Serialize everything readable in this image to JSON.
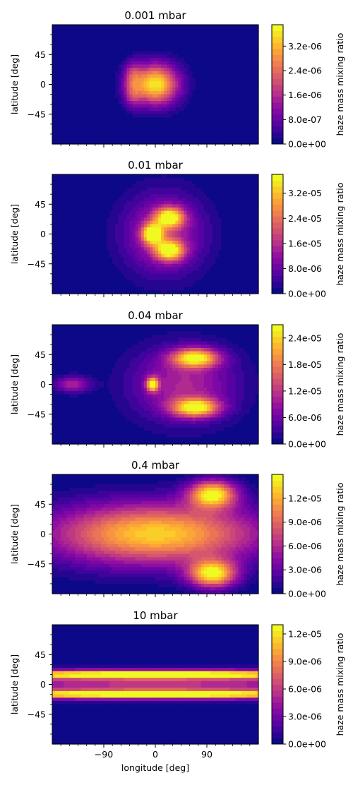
{
  "figure": {
    "xlabel": "longitude [deg]",
    "ylabel": "latitude [deg]",
    "colorbar_label": "haze mass mixing ratio"
  },
  "chart_data": [
    {
      "type": "heatmap",
      "title": "0.001 mbar",
      "xlabel": "",
      "ylabel": "latitude [deg]",
      "colorbar_label": "haze mass mixing ratio",
      "colormap": "plasma",
      "xlim": [
        -180,
        180
      ],
      "ylim": [
        -90,
        90
      ],
      "yticks": [
        {
          "value": 45,
          "label": "45"
        },
        {
          "value": 0,
          "label": "0"
        },
        {
          "value": -45,
          "label": "−45"
        }
      ],
      "clim": [
        0,
        3.9e-06
      ],
      "cticks": [
        {
          "value": 0,
          "label": "0.0e+00"
        },
        {
          "value": 8e-07,
          "label": "8.0e-07"
        },
        {
          "value": 1.6e-06,
          "label": "1.6e-06"
        },
        {
          "value": 2.4e-06,
          "label": "2.4e-06"
        },
        {
          "value": 3.2e-06,
          "label": "3.2e-06"
        }
      ],
      "features": [
        {
          "lon": 0,
          "lat": 0,
          "dlon": 40,
          "dlat": 30,
          "amp": 3.9e-06
        },
        {
          "lon": -40,
          "lat": 15,
          "dlon": 15,
          "dlat": 20,
          "amp": 1.2e-06
        },
        {
          "lon": -40,
          "lat": -15,
          "dlon": 15,
          "dlat": 20,
          "amp": 1.2e-06
        }
      ]
    },
    {
      "type": "heatmap",
      "title": "0.01 mbar",
      "xlabel": "",
      "ylabel": "latitude [deg]",
      "colorbar_label": "haze mass mixing ratio",
      "colormap": "plasma",
      "xlim": [
        -180,
        180
      ],
      "ylim": [
        -90,
        90
      ],
      "yticks": [
        {
          "value": 45,
          "label": "45"
        },
        {
          "value": 0,
          "label": "0"
        },
        {
          "value": -45,
          "label": "−45"
        }
      ],
      "clim": [
        0,
        3.8e-05
      ],
      "cticks": [
        {
          "value": 0,
          "label": "0.0e+00"
        },
        {
          "value": 8e-06,
          "label": "8.0e-06"
        },
        {
          "value": 1.6e-05,
          "label": "1.6e-05"
        },
        {
          "value": 2.4e-05,
          "label": "2.4e-05"
        },
        {
          "value": 3.2e-05,
          "label": "3.2e-05"
        }
      ],
      "features": [
        {
          "lon": 25,
          "lat": 25,
          "dlon": 25,
          "dlat": 15,
          "amp": 3.4e-05
        },
        {
          "lon": 25,
          "lat": -25,
          "dlon": 25,
          "dlat": 15,
          "amp": 3.4e-05
        },
        {
          "lon": -5,
          "lat": 0,
          "dlon": 18,
          "dlat": 15,
          "amp": 3.6e-05
        },
        {
          "lon": 15,
          "lat": 0,
          "dlon": 70,
          "dlat": 60,
          "amp": 1.6e-05
        }
      ]
    },
    {
      "type": "heatmap",
      "title": "0.04 mbar",
      "xlabel": "",
      "ylabel": "latitude [deg]",
      "colorbar_label": "haze mass mixing ratio",
      "colormap": "plasma",
      "xlim": [
        -180,
        180
      ],
      "ylim": [
        -90,
        90
      ],
      "yticks": [
        {
          "value": 45,
          "label": "45"
        },
        {
          "value": 0,
          "label": "0"
        },
        {
          "value": -45,
          "label": "−45"
        }
      ],
      "clim": [
        0,
        2.7e-05
      ],
      "cticks": [
        {
          "value": 0,
          "label": "0.0e+00"
        },
        {
          "value": 6e-06,
          "label": "6.0e-06"
        },
        {
          "value": 1.2e-05,
          "label": "1.2e-05"
        },
        {
          "value": 1.8e-05,
          "label": "1.8e-05"
        },
        {
          "value": 2.4e-05,
          "label": "2.4e-05"
        }
      ],
      "features": [
        {
          "lon": 70,
          "lat": 40,
          "dlon": 40,
          "dlat": 14,
          "amp": 2.5e-05
        },
        {
          "lon": 70,
          "lat": -35,
          "dlon": 40,
          "dlat": 14,
          "amp": 2.5e-05
        },
        {
          "lon": -5,
          "lat": 0,
          "dlon": 10,
          "dlat": 10,
          "amp": 2.6e-05
        },
        {
          "lon": -145,
          "lat": 0,
          "dlon": 30,
          "dlat": 12,
          "amp": 1.1e-05
        },
        {
          "lon": 50,
          "lat": 0,
          "dlon": 90,
          "dlat": 55,
          "amp": 1.1e-05
        }
      ]
    },
    {
      "type": "heatmap",
      "title": "0.4 mbar",
      "xlabel": "",
      "ylabel": "latitude [deg]",
      "colorbar_label": "haze mass mixing ratio",
      "colormap": "plasma",
      "xlim": [
        -180,
        180
      ],
      "ylim": [
        -90,
        90
      ],
      "yticks": [
        {
          "value": 45,
          "label": "45"
        },
        {
          "value": 0,
          "label": "0"
        },
        {
          "value": -45,
          "label": "−45"
        }
      ],
      "clim": [
        0,
        1.5e-05
      ],
      "cticks": [
        {
          "value": 0,
          "label": "0.0e+00"
        },
        {
          "value": 3e-06,
          "label": "3.0e-06"
        },
        {
          "value": 6e-06,
          "label": "6.0e-06"
        },
        {
          "value": 9e-06,
          "label": "9.0e-06"
        },
        {
          "value": 1.2e-05,
          "label": "1.2e-05"
        }
      ],
      "features": [
        {
          "lon": 0,
          "lat": 0,
          "dlon": 180,
          "dlat": 45,
          "amp": 1.4e-05
        },
        {
          "lon": 100,
          "lat": 60,
          "dlon": 40,
          "dlat": 20,
          "amp": 1.5e-05
        },
        {
          "lon": 100,
          "lat": -60,
          "dlon": 40,
          "dlat": 20,
          "amp": 1.5e-05
        }
      ]
    },
    {
      "type": "heatmap",
      "title": "10 mbar",
      "xlabel": "longitude [deg]",
      "ylabel": "latitude [deg]",
      "colorbar_label": "haze mass mixing ratio",
      "colormap": "plasma",
      "xlim": [
        -180,
        180
      ],
      "ylim": [
        -90,
        90
      ],
      "xticks": [
        {
          "value": -90,
          "label": "−90"
        },
        {
          "value": 0,
          "label": "0"
        },
        {
          "value": 90,
          "label": "90"
        }
      ],
      "yticks": [
        {
          "value": 45,
          "label": "45"
        },
        {
          "value": 0,
          "label": "0"
        },
        {
          "value": -45,
          "label": "−45"
        }
      ],
      "clim": [
        0,
        1.3e-05
      ],
      "cticks": [
        {
          "value": 0,
          "label": "0.0e+00"
        },
        {
          "value": 3e-06,
          "label": "3.0e-06"
        },
        {
          "value": 6e-06,
          "label": "6.0e-06"
        },
        {
          "value": 9e-06,
          "label": "9.0e-06"
        },
        {
          "value": 1.2e-05,
          "label": "1.2e-05"
        }
      ],
      "features": [
        {
          "lon": 0,
          "lat": 15,
          "dlon": 400,
          "dlat": 6,
          "amp": 1.3e-05
        },
        {
          "lon": 0,
          "lat": -15,
          "dlon": 400,
          "dlat": 6,
          "amp": 1.3e-05
        },
        {
          "lon": 0,
          "lat": 0,
          "dlon": 400,
          "dlat": 20,
          "amp": 6e-06
        }
      ]
    }
  ]
}
